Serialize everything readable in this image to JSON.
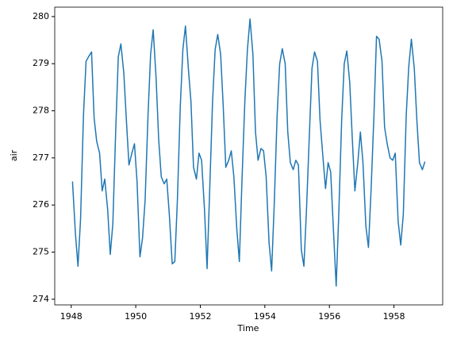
{
  "chart_data": {
    "type": "line",
    "x_label": "Time",
    "y_label": "air",
    "x": [
      1948.04,
      1948.13,
      1948.21,
      1948.29,
      1948.38,
      1948.46,
      1948.54,
      1948.63,
      1948.71,
      1948.79,
      1948.88,
      1948.96,
      1949.04,
      1949.13,
      1949.21,
      1949.29,
      1949.38,
      1949.46,
      1949.54,
      1949.63,
      1949.71,
      1949.79,
      1949.88,
      1949.96,
      1950.04,
      1950.13,
      1950.21,
      1950.29,
      1950.38,
      1950.46,
      1950.54,
      1950.63,
      1950.71,
      1950.79,
      1950.88,
      1950.96,
      1951.04,
      1951.13,
      1951.21,
      1951.29,
      1951.38,
      1951.46,
      1951.54,
      1951.63,
      1951.71,
      1951.79,
      1951.88,
      1951.96,
      1952.04,
      1952.13,
      1952.21,
      1952.29,
      1952.38,
      1952.46,
      1952.54,
      1952.63,
      1952.71,
      1952.79,
      1952.88,
      1952.96,
      1953.04,
      1953.13,
      1953.21,
      1953.29,
      1953.38,
      1953.46,
      1953.54,
      1953.63,
      1953.71,
      1953.79,
      1953.88,
      1953.96,
      1954.04,
      1954.13,
      1954.21,
      1954.29,
      1954.38,
      1954.46,
      1954.54,
      1954.63,
      1954.71,
      1954.79,
      1954.88,
      1954.96,
      1955.04,
      1955.13,
      1955.21,
      1955.29,
      1955.38,
      1955.46,
      1955.54,
      1955.63,
      1955.71,
      1955.79,
      1955.88,
      1955.96,
      1956.04,
      1956.13,
      1956.21,
      1956.29,
      1956.38,
      1956.46,
      1956.54,
      1956.63,
      1956.71,
      1956.79,
      1956.88,
      1956.96,
      1957.04,
      1957.13,
      1957.21,
      1957.29,
      1957.38,
      1957.46,
      1957.54,
      1957.63,
      1957.71,
      1957.79,
      1957.88,
      1957.96,
      1958.04,
      1958.13,
      1958.21,
      1958.29,
      1958.38,
      1958.46,
      1958.54,
      1958.63,
      1958.71,
      1958.79,
      1958.88,
      1958.96
    ],
    "series": [
      {
        "color": "#1f77b4",
        "values": [
          276.5,
          275.4,
          274.7,
          275.7,
          277.9,
          279.05,
          279.15,
          279.25,
          277.85,
          277.35,
          277.1,
          276.3,
          276.55,
          275.9,
          274.95,
          275.6,
          277.6,
          279.15,
          279.42,
          278.8,
          277.8,
          276.85,
          277.1,
          277.3,
          276.5,
          274.9,
          275.3,
          276.1,
          277.9,
          279.2,
          279.72,
          278.7,
          277.4,
          276.6,
          276.45,
          276.55,
          275.8,
          274.75,
          274.8,
          276.1,
          278.1,
          279.3,
          279.8,
          278.9,
          278.2,
          276.8,
          276.55,
          277.1,
          276.95,
          275.9,
          274.65,
          276.3,
          278.2,
          279.3,
          279.62,
          279.2,
          278.1,
          276.8,
          276.95,
          277.15,
          276.6,
          275.5,
          274.8,
          276.5,
          278.2,
          279.3,
          279.95,
          279.2,
          277.55,
          276.95,
          277.2,
          277.15,
          276.6,
          275.2,
          274.6,
          276.0,
          277.9,
          279.0,
          279.32,
          279.0,
          277.55,
          276.9,
          276.75,
          276.95,
          276.85,
          275.05,
          274.7,
          275.9,
          277.5,
          278.9,
          279.25,
          279.05,
          277.8,
          277.1,
          276.35,
          276.9,
          276.7,
          275.4,
          274.28,
          275.8,
          277.8,
          279.0,
          279.27,
          278.6,
          277.4,
          276.3,
          276.9,
          277.55,
          276.9,
          275.55,
          275.1,
          276.3,
          277.9,
          279.58,
          279.52,
          279.05,
          277.65,
          277.3,
          277.0,
          276.95,
          277.1,
          275.65,
          275.15,
          275.8,
          277.9,
          278.95,
          279.52,
          278.9,
          277.8,
          276.9,
          276.75,
          276.92
        ]
      }
    ],
    "xlim": [
      1947.49,
      1959.51
    ],
    "xticks": [
      1948,
      1950,
      1952,
      1954,
      1956,
      1958
    ],
    "ylim": [
      273.88,
      280.2
    ],
    "yticks": [
      274,
      275,
      276,
      277,
      278,
      279,
      280
    ]
  }
}
